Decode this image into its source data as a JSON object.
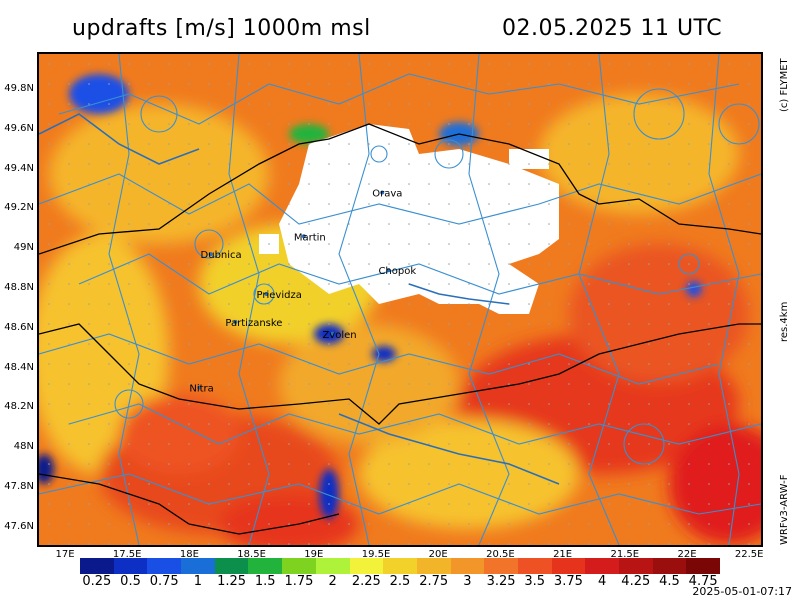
{
  "header": {
    "title": "updrafts [m/s] 1000m msl",
    "datetime": "02.05.2025 11 UTC"
  },
  "side_labels": {
    "copyright": "(c) FLYMET",
    "resolution": "res.4km",
    "model": "WRFv3-ARW-F"
  },
  "map": {
    "lat_labels": [
      "49.8N",
      "49.6N",
      "49.4N",
      "49.2N",
      "49N",
      "48.8N",
      "48.6N",
      "48.4N",
      "48.2N",
      "48N",
      "47.8N",
      "47.6N"
    ],
    "lon_labels": [
      "17E",
      "17.5E",
      "18E",
      "18.5E",
      "19E",
      "19.5E",
      "20E",
      "20.5E",
      "21E",
      "21.5E",
      "22E",
      "22.5E"
    ],
    "cities": [
      {
        "name": "Orava",
        "lon": 19.55,
        "lat": 49.28
      },
      {
        "name": "Martin",
        "lon": 18.92,
        "lat": 49.06
      },
      {
        "name": "Dubnica",
        "lon": 18.17,
        "lat": 48.97
      },
      {
        "name": "Chopok",
        "lon": 19.6,
        "lat": 48.89
      },
      {
        "name": "Prievidza",
        "lon": 18.62,
        "lat": 48.77
      },
      {
        "name": "Partizanske",
        "lon": 18.37,
        "lat": 48.63
      },
      {
        "name": "Zvolen",
        "lon": 19.15,
        "lat": 48.57
      },
      {
        "name": "Nitra",
        "lon": 18.08,
        "lat": 48.3
      }
    ]
  },
  "colorbar": {
    "colors": [
      "#0a1a8c",
      "#0e2fc4",
      "#1a4fe6",
      "#1a6ed8",
      "#0b8f4a",
      "#22b33c",
      "#7ed320",
      "#aef23a",
      "#f2f23a",
      "#f2d22a",
      "#f2b52a",
      "#f2962a",
      "#f2742a",
      "#ee5224",
      "#e6341c",
      "#d41c1c",
      "#b81414",
      "#9a0e0e",
      "#7a0606"
    ],
    "labels": [
      "0.25",
      "0.5",
      "0.75",
      "1",
      "1.25",
      "1.5",
      "1.75",
      "2",
      "2.25",
      "2.5",
      "2.75",
      "3",
      "3.25",
      "3.5",
      "3.75",
      "4",
      "4.25",
      "4.5",
      "4.75"
    ]
  },
  "footer": {
    "timestamp": "2025-05-01-07:17"
  }
}
